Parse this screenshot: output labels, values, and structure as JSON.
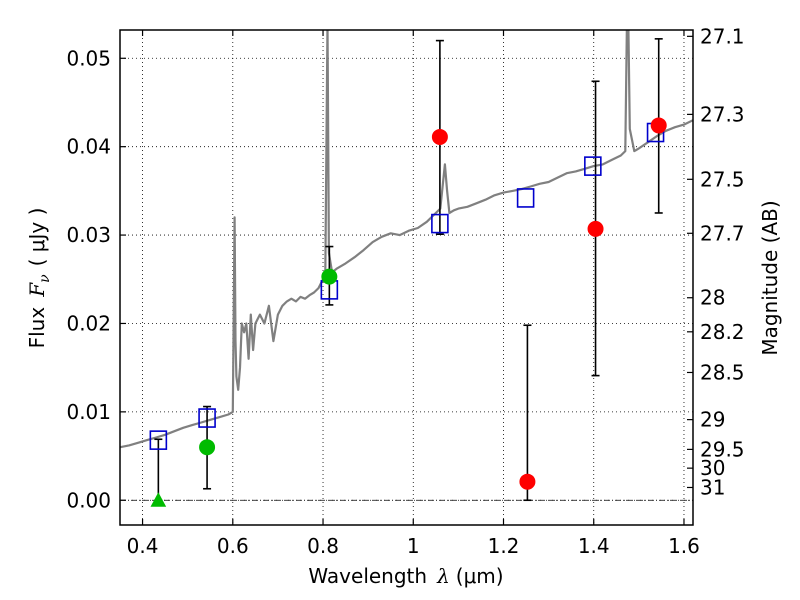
{
  "chart_data": {
    "type": "scatter",
    "xlim": [
      0.35,
      1.62
    ],
    "ylim": [
      -0.0028,
      0.0532
    ],
    "grid": true,
    "xlabel": {
      "text": "Wavelength",
      "symbol": "λ",
      "unit": "(μm)"
    },
    "ylabel": {
      "text": "Flux",
      "symbol": "F",
      "subscript": "ν",
      "unit": "( μJy )"
    },
    "y2label": "Magnitude (AB)",
    "xticks": [
      0.4,
      0.6,
      0.8,
      1.0,
      1.2,
      1.4,
      1.6
    ],
    "xtick_labels": [
      "0.4",
      "0.6",
      "0.8",
      "1",
      "1.2",
      "1.4",
      "1.6"
    ],
    "yticks": [
      0.0,
      0.01,
      0.02,
      0.03,
      0.04,
      0.05
    ],
    "ytick_labels": [
      "0.00",
      "0.01",
      "0.02",
      "0.03",
      "0.04",
      "0.05"
    ],
    "y2ticks": [
      {
        "label": "27.1",
        "mag": 27.1
      },
      {
        "label": "27.3",
        "mag": 27.3
      },
      {
        "label": "27.5",
        "mag": 27.5
      },
      {
        "label": "27.7",
        "mag": 27.7
      },
      {
        "label": "28",
        "mag": 28.0
      },
      {
        "label": "28.2",
        "mag": 28.2
      },
      {
        "label": "28.5",
        "mag": 28.5
      },
      {
        "label": "29",
        "mag": 29.0
      },
      {
        "label": "29.5",
        "mag": 29.5
      },
      {
        "label": "30",
        "mag": 30.0
      },
      {
        "label": "31",
        "mag": 31.0
      }
    ],
    "zero_line": 0.0,
    "series": [
      {
        "kind": "line",
        "color": "#808080",
        "x": [
          0.35,
          0.37,
          0.39,
          0.41,
          0.43,
          0.45,
          0.47,
          0.49,
          0.51,
          0.53,
          0.55,
          0.57,
          0.59,
          0.6,
          0.604,
          0.606,
          0.608,
          0.612,
          0.616,
          0.62,
          0.625,
          0.63,
          0.635,
          0.64,
          0.645,
          0.65,
          0.66,
          0.67,
          0.68,
          0.69,
          0.7,
          0.71,
          0.72,
          0.73,
          0.74,
          0.75,
          0.76,
          0.77,
          0.78,
          0.79,
          0.8,
          0.805,
          0.81,
          0.813,
          0.816,
          0.82,
          0.83,
          0.85,
          0.87,
          0.89,
          0.91,
          0.93,
          0.95,
          0.97,
          0.99,
          1.01,
          1.03,
          1.05,
          1.06,
          1.07,
          1.075,
          1.08,
          1.09,
          1.1,
          1.12,
          1.14,
          1.16,
          1.18,
          1.2,
          1.22,
          1.24,
          1.26,
          1.28,
          1.3,
          1.32,
          1.34,
          1.36,
          1.38,
          1.4,
          1.42,
          1.44,
          1.46,
          1.47,
          1.475,
          1.48,
          1.49,
          1.5,
          1.52,
          1.54,
          1.56,
          1.58,
          1.6,
          1.62
        ],
        "y": [
          0.006,
          0.0062,
          0.0065,
          0.0068,
          0.0071,
          0.0074,
          0.0078,
          0.0082,
          0.0085,
          0.0088,
          0.0091,
          0.0094,
          0.0097,
          0.01,
          0.032,
          0.018,
          0.014,
          0.0125,
          0.015,
          0.02,
          0.019,
          0.02,
          0.016,
          0.021,
          0.017,
          0.02,
          0.021,
          0.02,
          0.022,
          0.018,
          0.021,
          0.022,
          0.0225,
          0.0228,
          0.0225,
          0.023,
          0.0228,
          0.0232,
          0.0235,
          0.024,
          0.025,
          0.0255,
          0.054,
          0.028,
          0.027,
          0.0258,
          0.0262,
          0.0268,
          0.0275,
          0.0283,
          0.0292,
          0.0298,
          0.0302,
          0.03,
          0.0305,
          0.0308,
          0.0315,
          0.0325,
          0.033,
          0.038,
          0.035,
          0.0325,
          0.0328,
          0.033,
          0.0332,
          0.0336,
          0.034,
          0.0345,
          0.0348,
          0.035,
          0.0352,
          0.0355,
          0.0358,
          0.036,
          0.0365,
          0.037,
          0.0372,
          0.0375,
          0.0378,
          0.038,
          0.0385,
          0.039,
          0.0395,
          0.06,
          0.042,
          0.0395,
          0.0398,
          0.0405,
          0.0412,
          0.0418,
          0.0422,
          0.0425,
          0.043
        ]
      },
      {
        "kind": "markers",
        "marker": "square-open",
        "color": "#0000cc",
        "x": [
          0.435,
          0.543,
          0.814,
          1.059,
          1.249,
          1.398,
          1.537
        ],
        "y": [
          0.0068,
          0.0093,
          0.0238,
          0.0313,
          0.0342,
          0.0378,
          0.0416
        ]
      },
      {
        "kind": "markers",
        "marker": "circle",
        "color": "#00bb00",
        "x": [
          0.543,
          0.814
        ],
        "y": [
          0.006,
          0.0253
        ],
        "yerr_low": [
          0.0013,
          0.0221
        ],
        "yerr_high": [
          0.0106,
          0.0287
        ]
      },
      {
        "kind": "markers",
        "marker": "triangle",
        "color": "#00bb00",
        "x": [
          0.435
        ],
        "y": [
          0.0
        ],
        "yerr_low": [
          0.0
        ],
        "yerr_high": [
          0.0069
        ]
      },
      {
        "kind": "markers",
        "marker": "circle",
        "color": "#ff0000",
        "x": [
          1.059,
          1.253,
          1.404,
          1.544
        ],
        "y": [
          0.0411,
          0.0021,
          0.0307,
          0.0424
        ],
        "yerr_low": [
          0.0301,
          0.0,
          0.0141,
          0.0325
        ],
        "yerr_high": [
          0.052,
          0.0198,
          0.0474,
          0.0522
        ]
      }
    ]
  }
}
